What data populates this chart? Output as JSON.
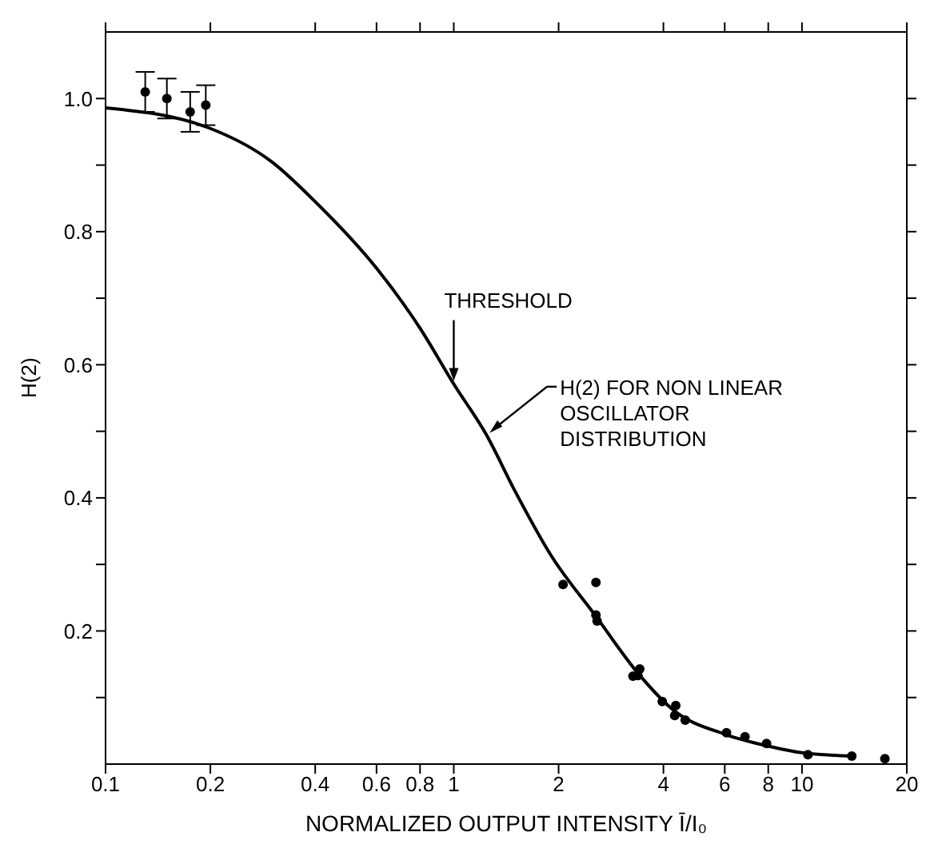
{
  "chart_data": {
    "type": "scatter",
    "xlabel": "NORMALIZED OUTPUT INTENSITY Ī/I₀",
    "ylabel": "H(2)",
    "log": "x",
    "xlim": [
      0.1,
      20
    ],
    "xticks": [
      0.1,
      0.2,
      0.4,
      0.6,
      0.8,
      1,
      2,
      4,
      6,
      8,
      10,
      20
    ],
    "ylim": [
      0,
      1.1
    ],
    "yticks": [
      {
        "value": 0.1,
        "label": null
      },
      0.2,
      {
        "value": 0.3,
        "label": null
      },
      0.4,
      {
        "value": 0.5,
        "label": null
      },
      0.6,
      {
        "value": 0.7,
        "label": null
      },
      0.8,
      {
        "value": 0.9,
        "label": null
      },
      {
        "value": 1,
        "label": "1.0"
      }
    ],
    "grid": false,
    "legend": false,
    "marker": "circle",
    "series": [
      {
        "color": "#000000",
        "x": [
          0.13,
          0.15,
          0.175,
          0.194,
          2.06,
          2.56,
          2.56,
          2.58,
          3.27,
          3.42,
          3.38,
          3.97,
          4.34,
          4.31,
          4.62,
          6.07,
          6.86,
          7.91,
          10.4,
          13.9,
          17.3
        ],
        "values": [
          1.01,
          1.0,
          0.98,
          0.99,
          0.27,
          0.273,
          0.224,
          0.215,
          0.132,
          0.143,
          0.133,
          0.094,
          0.088,
          0.073,
          0.066,
          0.047,
          0.041,
          0.031,
          0.014,
          0.012,
          0.008
        ],
        "errors": [
          0.03,
          0.03,
          0.03,
          0.03,
          null,
          null,
          null,
          null,
          null,
          null,
          null,
          null,
          null,
          null,
          null,
          null,
          null,
          null,
          null,
          null,
          null
        ]
      },
      {
        "type": "line",
        "color": "#000000",
        "marker": "none",
        "line_style": "solid",
        "x": [
          0.1,
          0.2,
          0.3,
          0.4,
          0.6,
          0.8,
          1,
          1.24,
          1.5,
          1.9,
          2.56,
          3.4,
          4.3,
          6,
          8,
          10,
          14
        ],
        "values": [
          0.986,
          0.955,
          0.905,
          0.845,
          0.745,
          0.655,
          0.571,
          0.495,
          0.41,
          0.314,
          0.222,
          0.135,
          0.08,
          0.045,
          0.027,
          0.017,
          0.012
        ]
      }
    ],
    "annotations": [
      {
        "text": "THRESHOLD",
        "x": 1,
        "y": 0.571
      },
      {
        "text": "H(2) FOR NON LINEAR\nOSCILLATOR\nDISTRIBUTION",
        "x": 1.24,
        "y": 0.495
      }
    ]
  }
}
